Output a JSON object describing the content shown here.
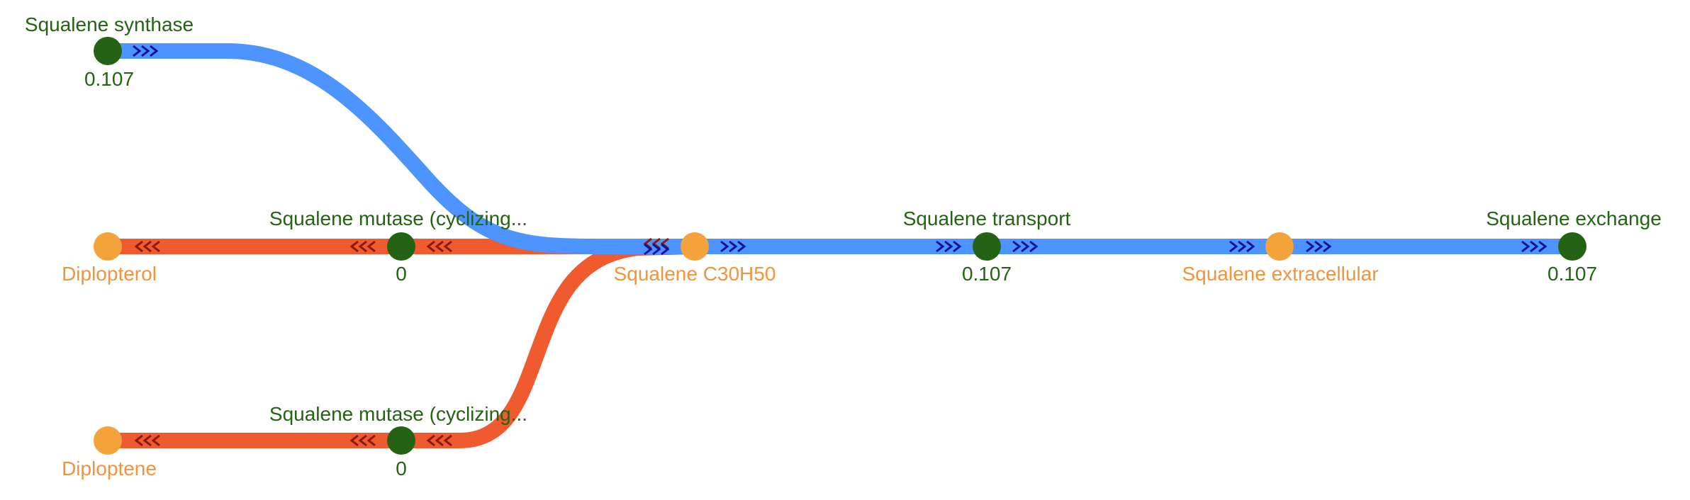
{
  "colors": {
    "forward_edge": "#4d94ff",
    "reverse_edge": "#ef5a2f",
    "reaction_node": "#236313",
    "metabolite_node": "#f4a23c",
    "reaction_text": "#236313",
    "metabolite_text": "#f5923a",
    "forward_arrow": "#1010a0",
    "reverse_arrow": "#8b1a0c"
  },
  "reactions": {
    "squalene_synthase": {
      "name": "Squalene synthase",
      "flux": "0.107"
    },
    "squalene_mutase_1": {
      "name": "Squalene mutase (cyclizing...",
      "flux": "0"
    },
    "squalene_mutase_2": {
      "name": "Squalene mutase (cyclizing...",
      "flux": "0"
    },
    "squalene_transport": {
      "name": "Squalene transport",
      "flux": "0.107"
    },
    "squalene_exchange": {
      "name": "Squalene exchange",
      "flux": "0.107"
    }
  },
  "metabolites": {
    "diplopterol": {
      "name": "Diplopterol"
    },
    "diploptene": {
      "name": "Diploptene"
    },
    "squalene": {
      "name": "Squalene C30H50"
    },
    "squalene_extracellular": {
      "name": "Squalene extracellular"
    }
  },
  "icons": {
    "forward_arrow": "triple-chevron-right-icon",
    "reverse_arrow": "triple-chevron-left-icon"
  }
}
